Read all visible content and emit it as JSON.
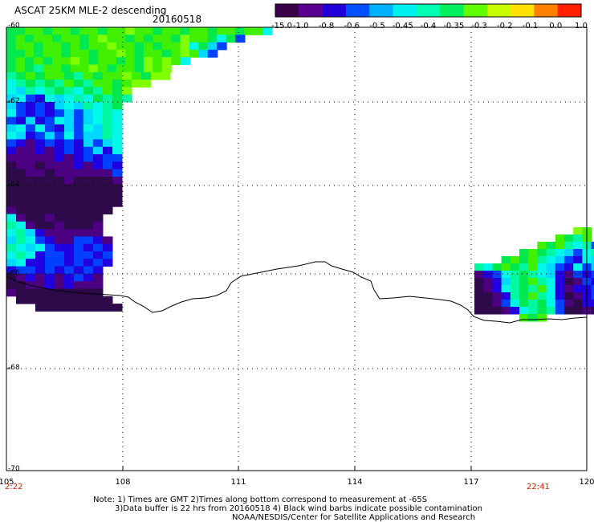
{
  "header": {
    "title": "ASCAT 25KM MLE-2 descending",
    "date": "20160518"
  },
  "colorbar": {
    "labels": [
      "-15.0",
      "-1.0",
      "-0.8",
      "-0.6",
      "-0.5",
      "-0.45",
      "-0.4",
      "-0.35",
      "-0.3",
      "-0.2",
      "-0.1",
      "0.0",
      "1.0"
    ],
    "colors": [
      "#3a0048",
      "#5a0090",
      "#2200d8",
      "#0050ff",
      "#00b0ff",
      "#00f0f0",
      "#00ffb0",
      "#00f060",
      "#60ff00",
      "#c8ff00",
      "#ffe000",
      "#ff8000",
      "#ff2000"
    ]
  },
  "axes": {
    "x_ticks": [
      "105",
      "108",
      "111",
      "114",
      "117",
      "120"
    ],
    "y_ticks": [
      "-60",
      "-62",
      "-64",
      "-66",
      "-68",
      "-70"
    ],
    "grid": true
  },
  "times": {
    "left": "2:22",
    "right": "22:41"
  },
  "notes": {
    "line1": "Note: 1) Times are GMT 2)Times along bottom correspond to measurement at -65S",
    "line2": "3)Data buffer is 22 hrs from 20160518 4) Black wind barbs indicate possible contamination",
    "line3": "NOAA/NESDIS/Center for Satellite Applications and Research"
  }
}
